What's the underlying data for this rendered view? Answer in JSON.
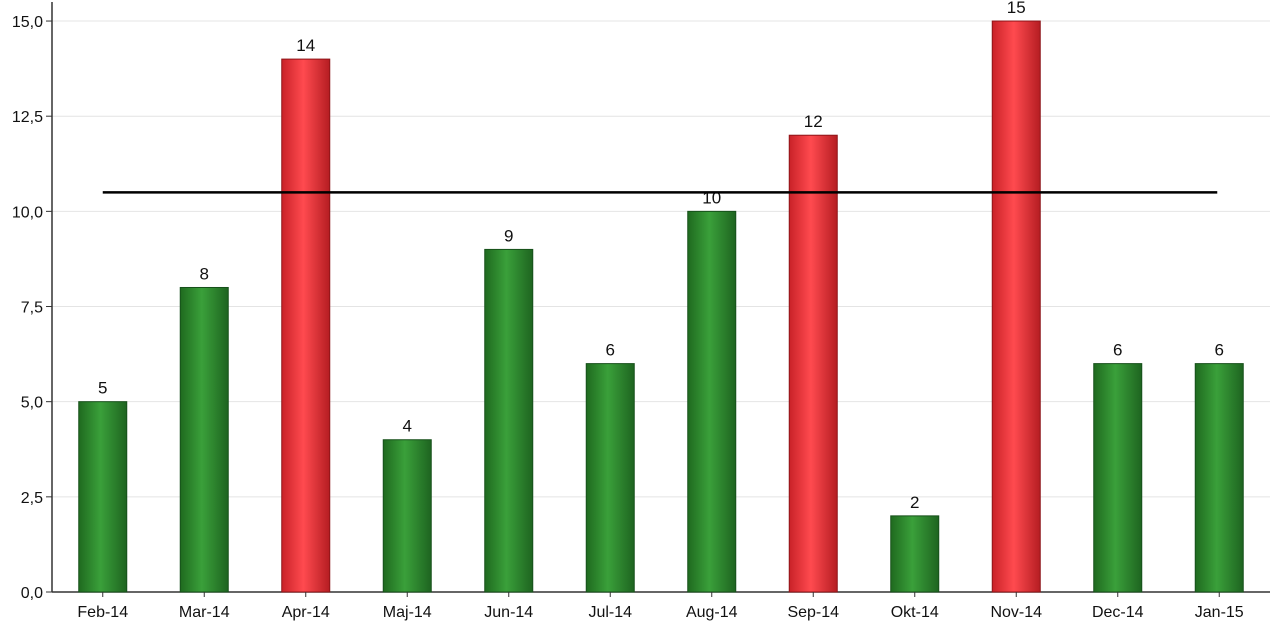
{
  "chart_data": {
    "type": "bar",
    "title": "",
    "xlabel": "",
    "ylabel": "",
    "categories": [
      "Feb-14",
      "Mar-14",
      "Apr-14",
      "Maj-14",
      "Jun-14",
      "Jul-14",
      "Aug-14",
      "Sep-14",
      "Okt-14",
      "Nov-14",
      "Dec-14",
      "Jan-15"
    ],
    "values": [
      5,
      8,
      14,
      4,
      9,
      6,
      10,
      12,
      2,
      15,
      6,
      6
    ],
    "data_labels": [
      "5",
      "8",
      "14",
      "4",
      "9",
      "6",
      "10",
      "12",
      "2",
      "15",
      "6",
      "6"
    ],
    "bar_status": [
      "below",
      "below",
      "above",
      "below",
      "below",
      "below",
      "below",
      "above",
      "below",
      "above",
      "below",
      "below"
    ],
    "reference_line": 10.5,
    "ylim": [
      0,
      15.5
    ],
    "yticks": [
      0,
      2.5,
      5,
      7.5,
      10,
      12.5,
      15
    ],
    "ytick_labels": [
      "0,0",
      "2,5",
      "5,0",
      "7,5",
      "10,0",
      "12,5",
      "15,0"
    ],
    "grid": true,
    "legend": "none",
    "colors": {
      "below": "#2f8f2f",
      "above": "#e8383d",
      "reference_line": "#000000",
      "grid": "#e4e4e4",
      "axis": "#333333"
    }
  }
}
